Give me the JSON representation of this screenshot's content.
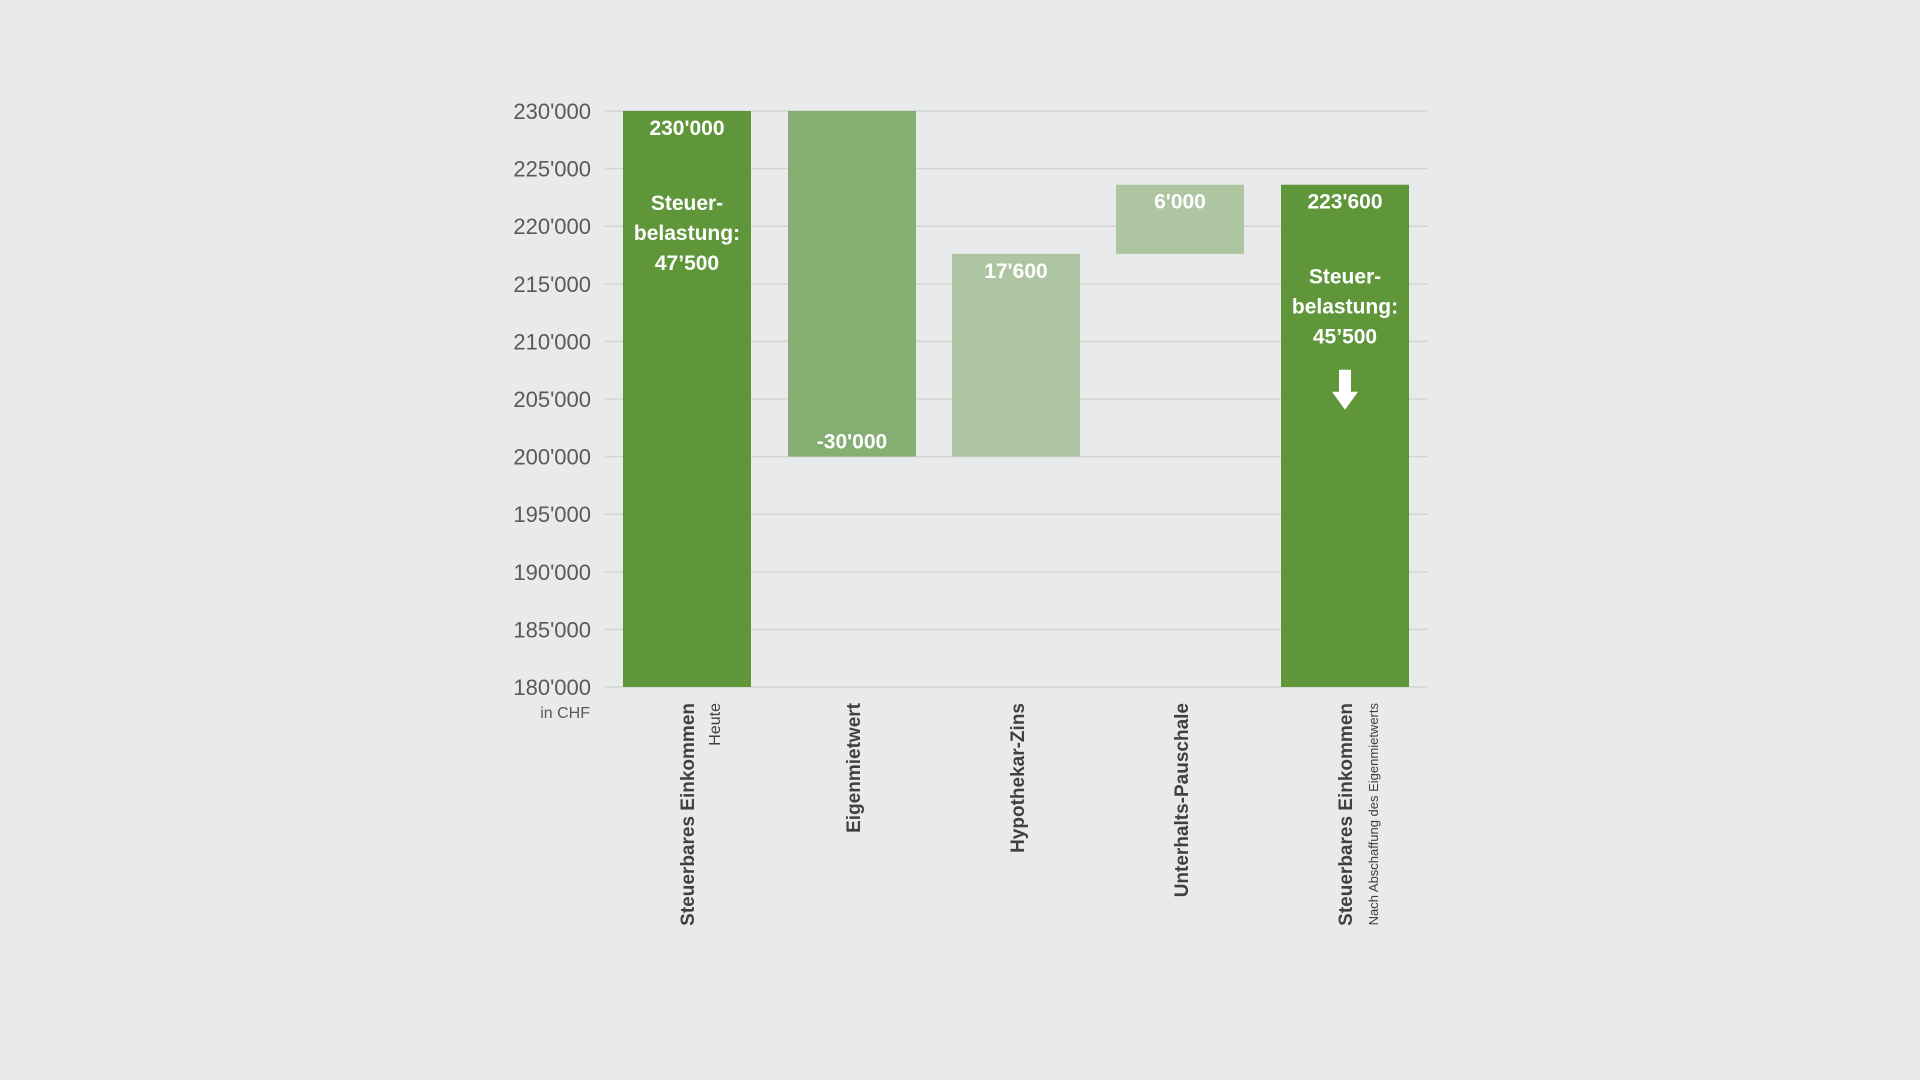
{
  "chart_data": {
    "type": "waterfall",
    "ylim": [
      180000,
      230000
    ],
    "yticks": [
      "230'000",
      "225'000",
      "220'000",
      "215'000",
      "210'000",
      "205'000",
      "200'000",
      "195'000",
      "190'000",
      "185'000",
      "180'000"
    ],
    "ytick_values": [
      230000,
      225000,
      220000,
      215000,
      210000,
      205000,
      200000,
      195000,
      190000,
      185000,
      180000
    ],
    "unit_label": "in CHF",
    "grid": true,
    "bars": [
      {
        "category": "Steuerbares Einkommen",
        "subcategory": "Heute",
        "start": 180000,
        "end": 230000,
        "value_label": "230'000",
        "note": [
          "Steuer-",
          "belastung:",
          "47’500"
        ],
        "kind": "total",
        "color": "#5f963a"
      },
      {
        "category": "Eigenmietwert",
        "subcategory": "",
        "start": 230000,
        "end": 200000,
        "value_label": "-30'000",
        "kind": "decrease",
        "color": "#86ad72"
      },
      {
        "category": "Hypothekar-Zins",
        "subcategory": "",
        "start": 200000,
        "end": 217600,
        "value_label": "17'600",
        "kind": "increase",
        "color": "#adc6a1"
      },
      {
        "category": "Unterhalts-Pauschale",
        "subcategory": "",
        "start": 217600,
        "end": 223600,
        "value_label": "6'000",
        "kind": "increase",
        "color": "#adc6a1"
      },
      {
        "category": "Steuerbares Einkommen",
        "subcategory": "Nach Abschaffung des Eigenmietwerts",
        "start": 180000,
        "end": 223600,
        "value_label": "223'600",
        "note": [
          "Steuer-",
          "belastung:",
          "45’500"
        ],
        "arrow": "down-arrow-icon",
        "kind": "total",
        "color": "#5f963a"
      }
    ],
    "colors": {
      "grid": "#d4d4d4",
      "axis_text": "#595959",
      "category_text": "#404040",
      "background": "#e9eaeb"
    }
  }
}
